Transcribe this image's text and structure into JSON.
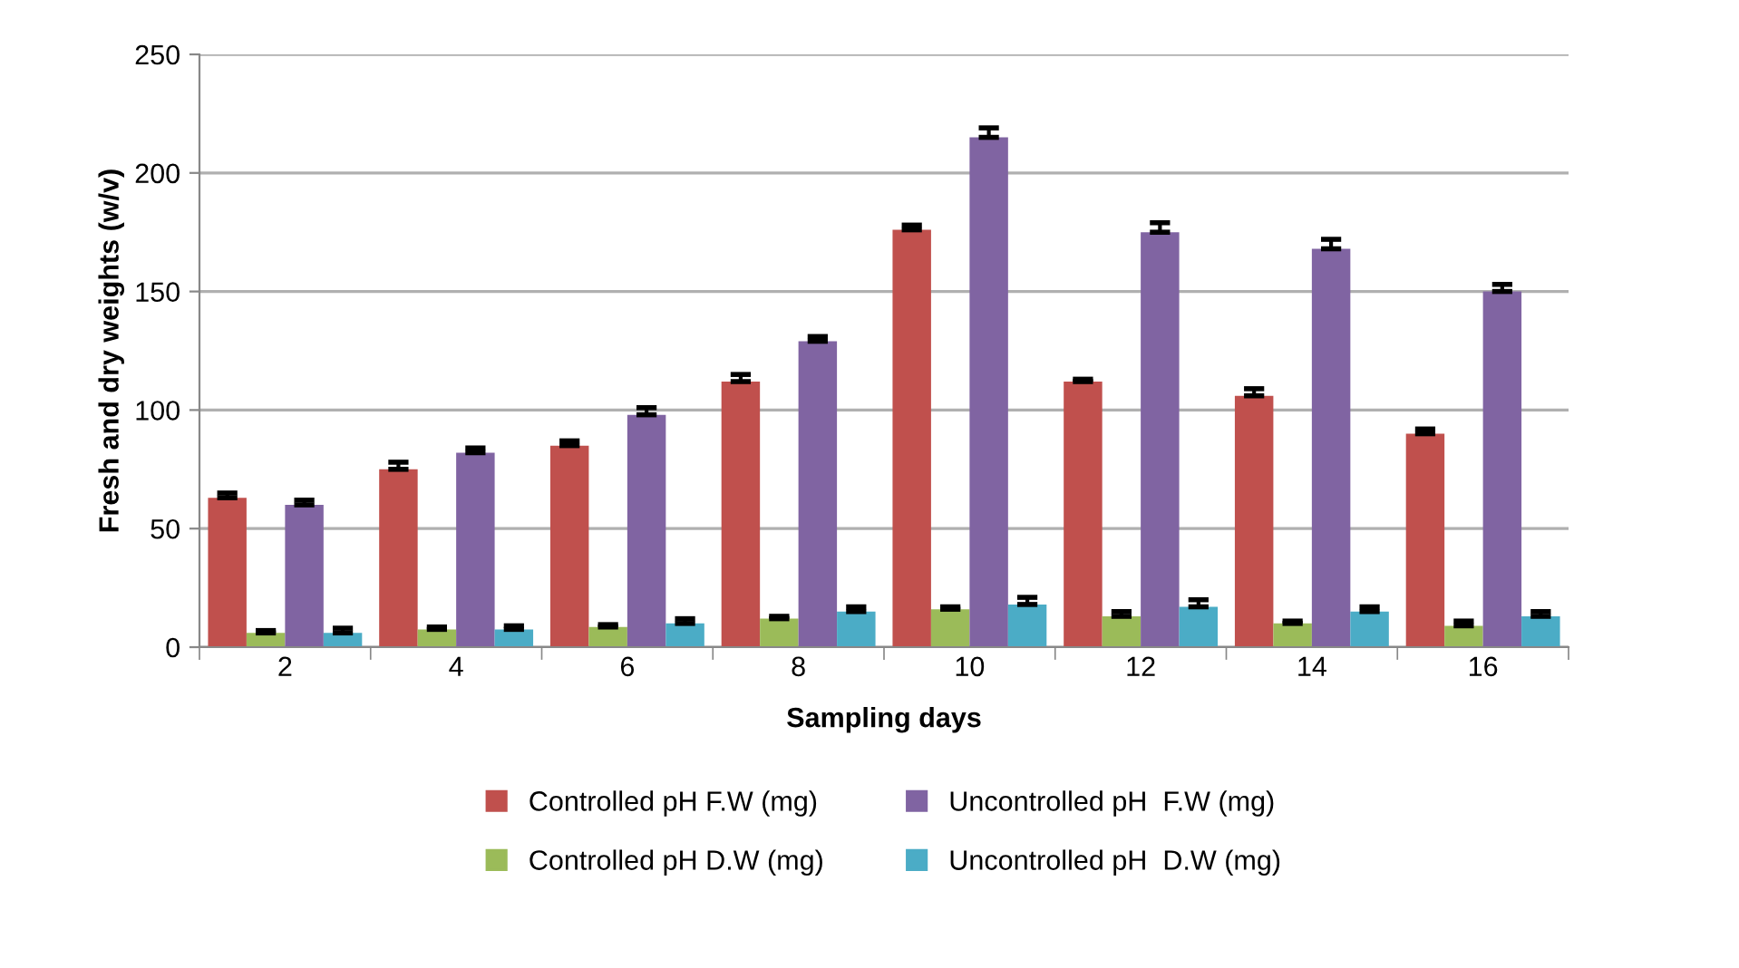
{
  "chart_data": {
    "type": "bar",
    "xlabel": "Sampling days",
    "ylabel": "Fresh and dry weights (w/v)",
    "categories": [
      "2",
      "4",
      "6",
      "8",
      "10",
      "12",
      "14",
      "16"
    ],
    "series": [
      {
        "name": "Controlled pH F.W (mg)",
        "color": "#c0504d",
        "values": [
          63,
          75,
          85,
          112,
          176,
          112,
          106,
          90
        ],
        "errors": [
          [
            63,
            65
          ],
          [
            75,
            78
          ],
          [
            85,
            87
          ],
          [
            112,
            115
          ],
          [
            176,
            178
          ],
          [
            112,
            113
          ],
          [
            106,
            109
          ],
          [
            90,
            92
          ]
        ]
      },
      {
        "name": "Controlled pH D.W (mg)",
        "color": "#9bbb59",
        "values": [
          6,
          7.5,
          8.5,
          12,
          16,
          13,
          10,
          9
        ],
        "errors": [
          [
            6,
            7
          ],
          [
            7.5,
            8.5
          ],
          [
            8.5,
            9.5
          ],
          [
            12,
            13
          ],
          [
            16,
            17
          ],
          [
            13,
            15
          ],
          [
            10,
            11
          ],
          [
            9,
            11
          ]
        ]
      },
      {
        "name": "Uncontrolled pH  F.W (mg)",
        "color": "#8064a2",
        "values": [
          60,
          82,
          98,
          129,
          215,
          175,
          168,
          150
        ],
        "errors": [
          [
            60,
            62
          ],
          [
            82,
            84
          ],
          [
            98,
            101
          ],
          [
            129,
            131
          ],
          [
            215,
            219
          ],
          [
            175,
            179
          ],
          [
            168,
            172
          ],
          [
            150,
            153
          ]
        ]
      },
      {
        "name": "Uncontrolled pH  D.W (mg)",
        "color": "#4bacc6",
        "values": [
          6,
          7.5,
          10,
          15,
          18,
          17,
          15,
          13
        ],
        "errors": [
          [
            6,
            8
          ],
          [
            7.5,
            9
          ],
          [
            10,
            12
          ],
          [
            15,
            17
          ],
          [
            18,
            21
          ],
          [
            17,
            20
          ],
          [
            15,
            17
          ],
          [
            13,
            15
          ]
        ]
      }
    ],
    "ylim": [
      0,
      250
    ],
    "yticks": [
      0,
      50,
      100,
      150,
      200,
      250
    ],
    "grid": "y",
    "legend": "bottom"
  }
}
